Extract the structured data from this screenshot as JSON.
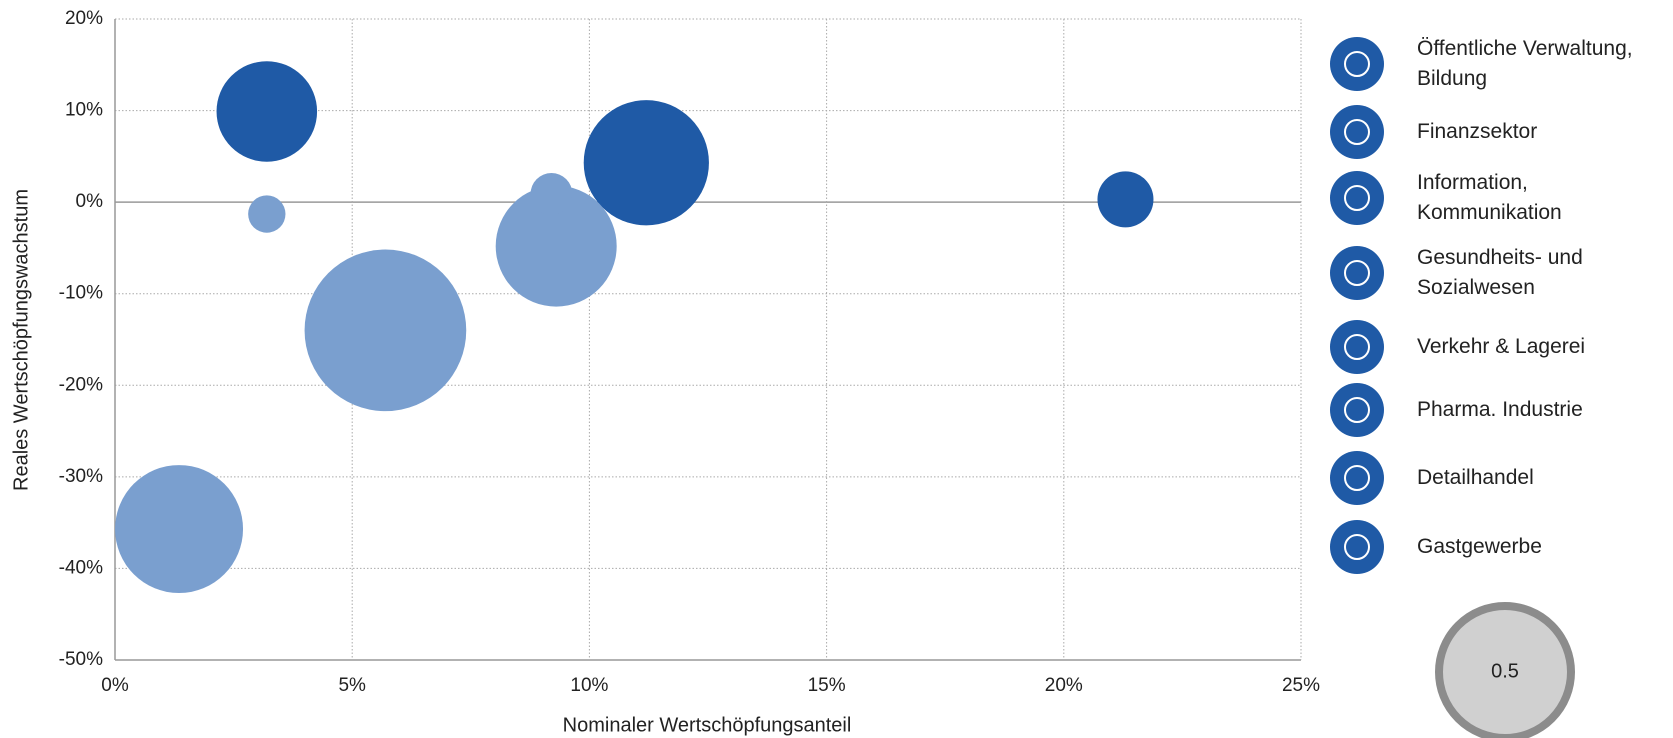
{
  "chart_data": {
    "type": "bubble",
    "x_label": "Nominaler Wertschöpfungsanteil",
    "y_label": "Reales Wertschöpfungswachstum",
    "xlim": [
      0,
      25
    ],
    "xticks": [
      {
        "value": 0,
        "label": "0%"
      },
      {
        "value": 5,
        "label": "5%"
      },
      {
        "value": 10,
        "label": "10%"
      },
      {
        "value": 15,
        "label": "15%"
      },
      {
        "value": 20,
        "label": "20%"
      },
      {
        "value": 25,
        "label": "25%"
      }
    ],
    "ylim": [
      -50,
      20
    ],
    "yticks": [
      {
        "value": -50,
        "label": "-50%"
      },
      {
        "value": -40,
        "label": "-40%"
      },
      {
        "value": -30,
        "label": "-30%"
      },
      {
        "value": -20,
        "label": "-20%"
      },
      {
        "value": -10,
        "label": "-10%"
      },
      {
        "value": 0,
        "label": "0%"
      },
      {
        "value": 10,
        "label": "10%"
      },
      {
        "value": 20,
        "label": "20%"
      }
    ],
    "grid": true,
    "legend_position": "right",
    "size_legend": 0.5,
    "series": [
      {
        "name": "Öffentliche Verwaltung, Bildung",
        "color": "#1f5aa6",
        "x": [
          21.3
        ],
        "values": [
          0.3
        ],
        "sizes": [
          0.09
        ]
      },
      {
        "name": "Finanzsektor",
        "color": "#1f5aa6",
        "x": [
          11.2
        ],
        "values": [
          4.3
        ],
        "sizes": [
          0.45
        ]
      },
      {
        "name": "Information, Kommunikation",
        "color": "#7a9fcf",
        "x": [
          9.2
        ],
        "values": [
          0.9
        ],
        "sizes": [
          0.05
        ]
      },
      {
        "name": "Gesundheits- und Sozialwesen",
        "color": "#7a9fcf",
        "x": [
          9.3
        ],
        "values": [
          -4.8
        ],
        "sizes": [
          0.42
        ]
      },
      {
        "name": "Verkehr & Lagerei",
        "color": "#7a9fcf",
        "x": [
          5.7
        ],
        "values": [
          -14.0
        ],
        "sizes": [
          0.75
        ]
      },
      {
        "name": "Pharma. Industrie",
        "color": "#1f5aa6",
        "x": [
          3.2
        ],
        "values": [
          9.9
        ],
        "sizes": [
          0.29
        ]
      },
      {
        "name": "Detailhandel",
        "color": "#7a9fcf",
        "x": [
          3.2
        ],
        "values": [
          -1.3
        ],
        "sizes": [
          0.04
        ]
      },
      {
        "name": "Gastgewerbe",
        "color": "#7a9fcf",
        "x": [
          1.35
        ],
        "values": [
          -35.7
        ],
        "sizes": [
          0.47
        ]
      }
    ]
  }
}
